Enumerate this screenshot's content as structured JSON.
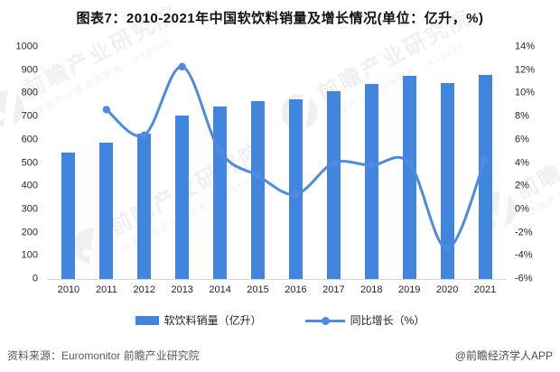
{
  "title": "图表7：2010-2021年中国软饮料销量及增长情况(单位：亿升，%)",
  "chart_data": {
    "type": "bar+line combo",
    "title": "图表7：2010-2021年中国软饮料销量及增长情况(单位：亿升，%)",
    "categories": [
      "2010",
      "2011",
      "2012",
      "2013",
      "2014",
      "2015",
      "2016",
      "2017",
      "2018",
      "2019",
      "2020",
      "2021"
    ],
    "series": [
      {
        "name": "软饮料销量（亿升）",
        "type": "bar",
        "axis": "left",
        "color": "#4285de",
        "values": [
          544,
          588,
          627,
          704,
          744,
          766,
          776,
          809,
          842,
          876,
          843,
          879
        ]
      },
      {
        "name": "同比增长（%）",
        "type": "line",
        "axis": "right",
        "color": "#4e8be0",
        "values": [
          null,
          8.6,
          6.4,
          12.3,
          5.0,
          2.9,
          1.3,
          4.0,
          3.8,
          4.0,
          -3.4,
          4.3
        ]
      }
    ],
    "left_axis": {
      "min": 0,
      "max": 1000,
      "step": 100,
      "tick_labels": [
        "1000",
        "900",
        "800",
        "700",
        "600",
        "500",
        "400",
        "300",
        "200",
        "100",
        "0"
      ]
    },
    "right_axis": {
      "min": -6,
      "max": 14,
      "step": 2,
      "tick_labels": [
        "14%",
        "12%",
        "10%",
        "8%",
        "6%",
        "4%",
        "2%",
        "0%",
        "-2%",
        "-4%",
        "-6%"
      ]
    },
    "grid": "off",
    "legend_position": "bottom"
  },
  "legend": {
    "sales_label": "软饮料销量（亿升）",
    "growth_label": "同比增长（%）"
  },
  "footer": {
    "source": "资料来源：Euromonitor 前瞻产业研究院",
    "credit": "@前瞻经济学人APP"
  },
  "watermark": {
    "brand": "前瞻产业研究院",
    "sub": "中国产业咨询领导者 · 839599"
  },
  "colors": {
    "bar": "#4285de",
    "line": "#4e8be0",
    "axis": "#d6d6d6",
    "text": "#262626"
  }
}
